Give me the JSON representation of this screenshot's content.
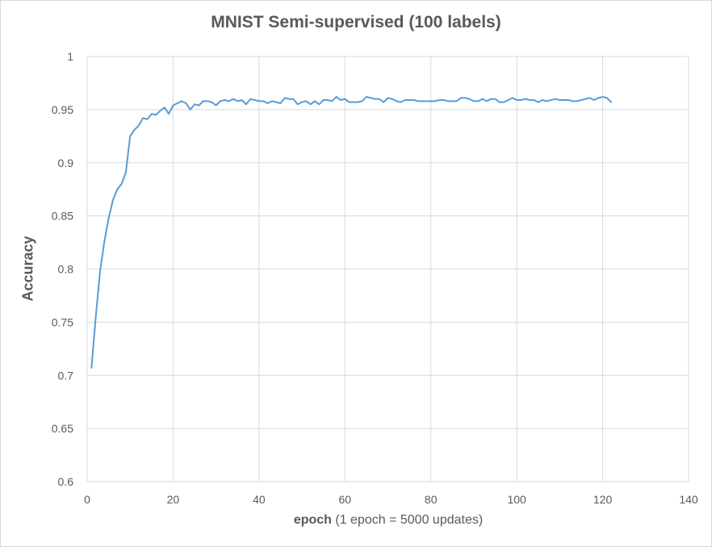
{
  "chart_data": {
    "type": "line",
    "title": "MNIST Semi-supervised (100 labels)",
    "xlabel_bold": "epoch",
    "xlabel_rest": " (1 epoch = 5000 updates)",
    "ylabel": "Accuracy",
    "xlim": [
      0,
      140
    ],
    "ylim": [
      0.6,
      1
    ],
    "x_ticks": [
      "0",
      "20",
      "40",
      "60",
      "80",
      "100",
      "120",
      "140"
    ],
    "y_ticks": [
      "0.6",
      "0.65",
      "0.7",
      "0.75",
      "0.8",
      "0.85",
      "0.9",
      "0.95",
      "1"
    ],
    "grid": true,
    "line_color": "#5b9bd5",
    "gridline_color": "#d9d9d9",
    "series": [
      {
        "x": [
          1,
          2,
          3,
          4,
          5,
          6,
          7,
          8,
          9,
          10,
          11,
          12,
          13,
          14,
          15,
          16,
          17,
          18,
          19,
          20,
          21,
          22,
          23,
          24,
          25,
          26,
          27,
          28,
          29,
          30,
          31,
          32,
          33,
          34,
          35,
          36,
          37,
          38,
          39,
          40,
          41,
          42,
          43,
          44,
          45,
          46,
          47,
          48,
          49,
          50,
          51,
          52,
          53,
          54,
          55,
          56,
          57,
          58,
          59,
          60,
          61,
          62,
          63,
          64,
          65,
          66,
          67,
          68,
          69,
          70,
          71,
          72,
          73,
          74,
          75,
          76,
          77,
          78,
          79,
          80,
          81,
          82,
          83,
          84,
          85,
          86,
          87,
          88,
          89,
          90,
          91,
          92,
          93,
          94,
          95,
          96,
          97,
          98,
          99,
          100,
          101,
          102,
          103,
          104,
          105,
          106,
          107,
          108,
          109,
          110,
          111,
          112,
          113,
          114,
          115,
          116,
          117,
          118,
          119,
          120,
          121,
          122
        ],
        "values": [
          0.707,
          0.755,
          0.798,
          0.826,
          0.848,
          0.865,
          0.875,
          0.88,
          0.891,
          0.925,
          0.931,
          0.935,
          0.942,
          0.941,
          0.946,
          0.945,
          0.949,
          0.952,
          0.946,
          0.954,
          0.956,
          0.958,
          0.956,
          0.95,
          0.955,
          0.954,
          0.958,
          0.958,
          0.957,
          0.954,
          0.958,
          0.959,
          0.958,
          0.96,
          0.958,
          0.959,
          0.955,
          0.96,
          0.959,
          0.958,
          0.958,
          0.956,
          0.958,
          0.957,
          0.956,
          0.961,
          0.96,
          0.96,
          0.955,
          0.957,
          0.958,
          0.955,
          0.958,
          0.955,
          0.959,
          0.959,
          0.958,
          0.962,
          0.959,
          0.96,
          0.957,
          0.957,
          0.957,
          0.958,
          0.962,
          0.961,
          0.96,
          0.96,
          0.957,
          0.961,
          0.96,
          0.958,
          0.957,
          0.959,
          0.959,
          0.959,
          0.958,
          0.958,
          0.958,
          0.958,
          0.958,
          0.959,
          0.959,
          0.958,
          0.958,
          0.958,
          0.961,
          0.961,
          0.96,
          0.958,
          0.958,
          0.96,
          0.958,
          0.96,
          0.96,
          0.957,
          0.957,
          0.959,
          0.961,
          0.959,
          0.959,
          0.96,
          0.959,
          0.959,
          0.957,
          0.959,
          0.958,
          0.959,
          0.96,
          0.959,
          0.959,
          0.959,
          0.958,
          0.958,
          0.959,
          0.96,
          0.961,
          0.959,
          0.961,
          0.962,
          0.961,
          0.957
        ]
      }
    ]
  }
}
